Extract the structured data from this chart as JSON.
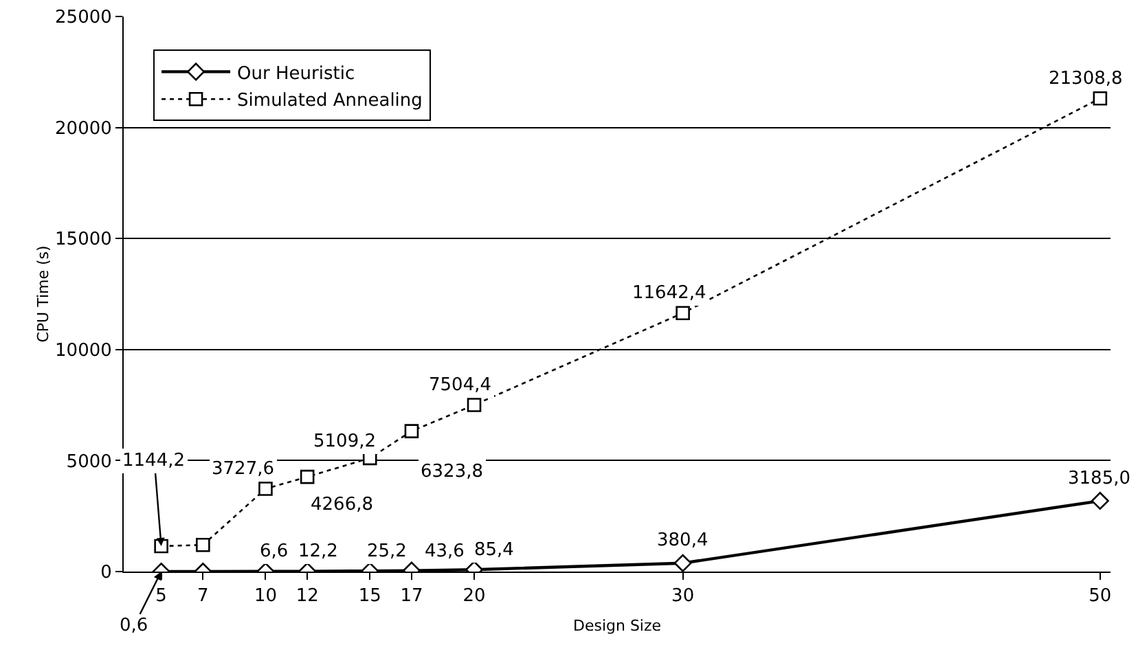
{
  "chart_data": {
    "type": "line",
    "xlabel": "Design Size",
    "ylabel": "CPU Time (s)",
    "x": [
      5,
      7,
      10,
      12,
      15,
      17,
      20,
      30,
      50
    ],
    "xlim": [
      3.2,
      50.5
    ],
    "xticks": [
      5,
      7,
      10,
      12,
      15,
      17,
      20,
      30,
      50
    ],
    "ylim": [
      0,
      25000
    ],
    "yticks": [
      0,
      5000,
      10000,
      15000,
      20000,
      25000
    ],
    "grid": "y",
    "legend": "top left",
    "series": [
      {
        "name": "Our Heuristic",
        "color": "#000000",
        "marker": "diamond",
        "line_style": "solid",
        "values": [
          0.6,
          0,
          6.6,
          12.2,
          25.2,
          43.6,
          85.4,
          380.4,
          3185.0
        ],
        "value_labels": [
          "0,6",
          null,
          "6,6",
          "12,2",
          "25,2",
          "43,6",
          "85,4",
          "380,4",
          "3185,0"
        ]
      },
      {
        "name": "Simulated Annealing",
        "color": "#000000",
        "marker": "square",
        "line_style": "dotted",
        "values": [
          1144.2,
          1200,
          3727.6,
          4266.8,
          5109.2,
          6323.8,
          7504.4,
          11642.4,
          21308.8
        ],
        "value_labels": [
          "1144,2",
          null,
          "3727,6",
          "4266,8",
          "5109,2",
          "6323,8",
          "7504,4",
          "11642,4",
          "21308,8"
        ]
      }
    ]
  }
}
